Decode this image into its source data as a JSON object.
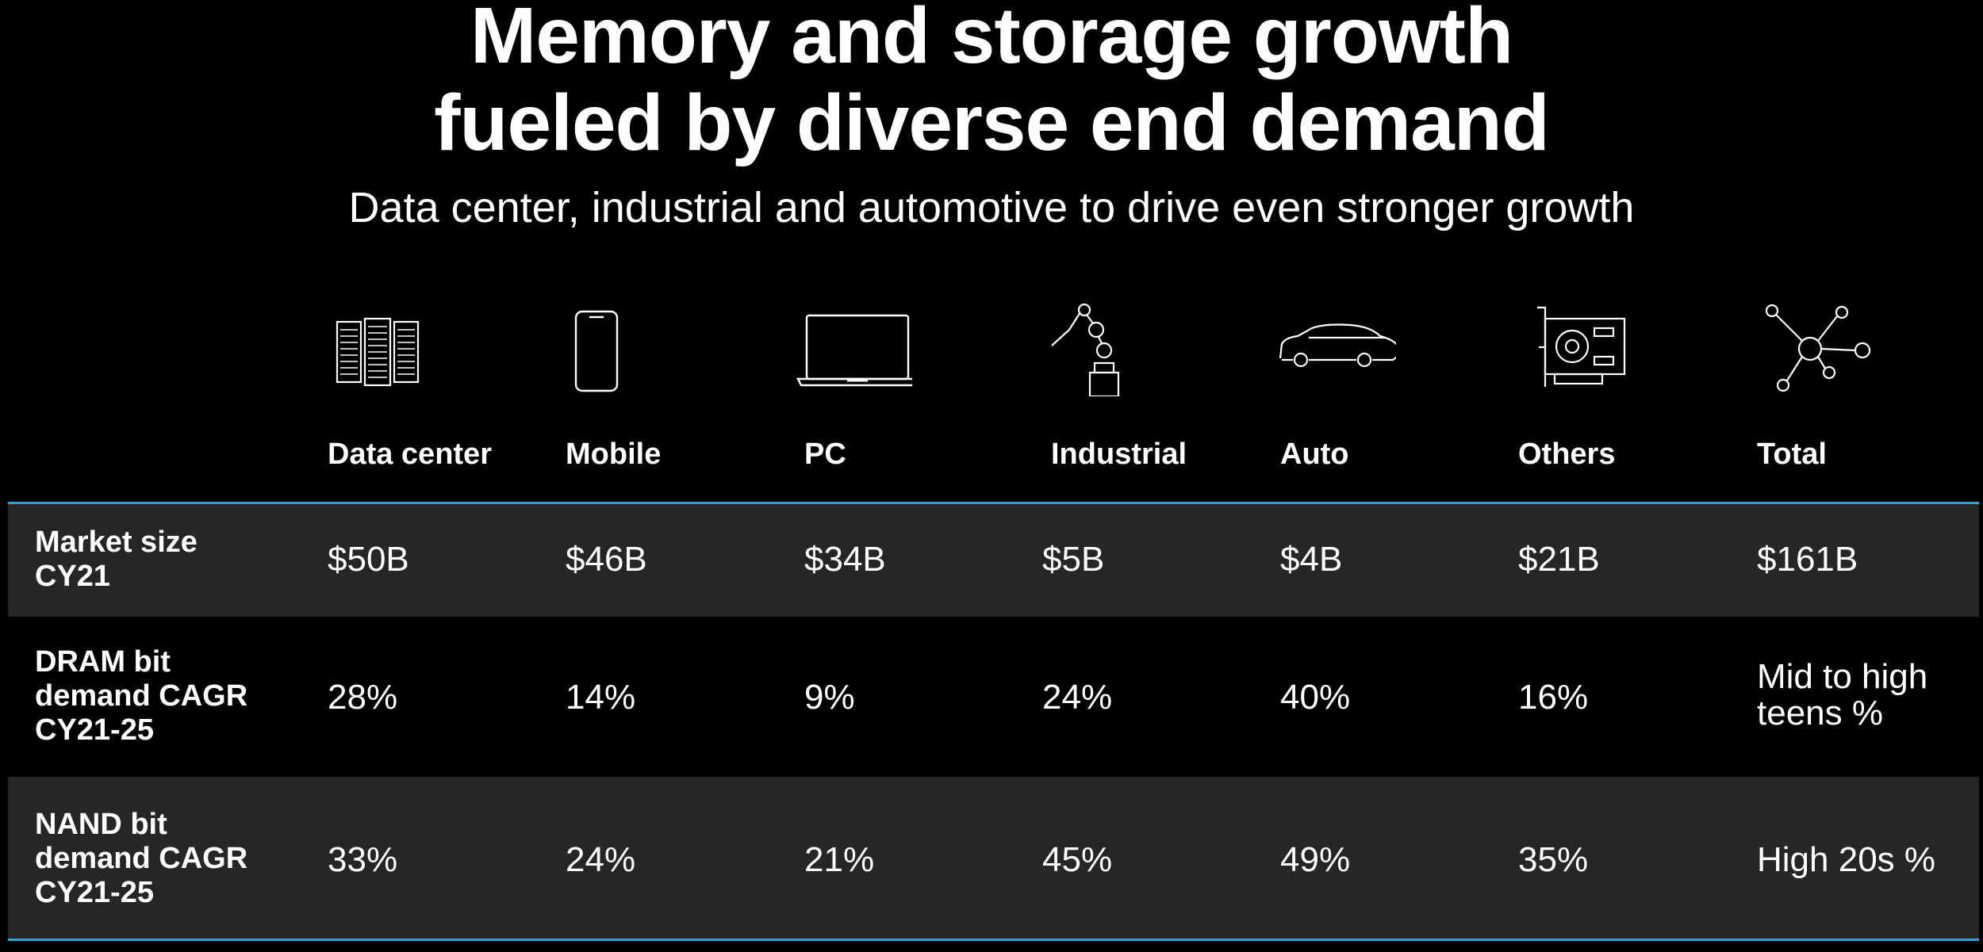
{
  "header": {
    "title_line1": "Memory and storage growth",
    "title_line2": "fueled by diverse end demand",
    "subtitle": "Data center, industrial and automotive to drive even stronger growth"
  },
  "categories": [
    {
      "label": "Data center",
      "icon": "server-rack-icon"
    },
    {
      "label": "Mobile",
      "icon": "smartphone-icon"
    },
    {
      "label": "PC",
      "icon": "laptop-icon"
    },
    {
      "label": "Industrial",
      "icon": "robot-arm-icon"
    },
    {
      "label": "Auto",
      "icon": "car-icon"
    },
    {
      "label": "Others",
      "icon": "graphics-card-icon"
    },
    {
      "label": "Total",
      "icon": "network-hub-icon"
    }
  ],
  "rows": [
    {
      "label_lines": [
        "Market size",
        "CY21"
      ],
      "values": [
        "$50B",
        "$46B",
        "$34B",
        "$5B",
        "$4B",
        "$21B",
        "$161B"
      ]
    },
    {
      "label_lines": [
        "DRAM bit",
        "demand CAGR",
        "CY21-25"
      ],
      "values": [
        "28%",
        "14%",
        "9%",
        "24%",
        "40%",
        "16%"
      ],
      "total_lines": [
        "Mid to high",
        "teens %"
      ]
    },
    {
      "label_lines": [
        "NAND bit",
        "demand CAGR",
        "CY21-25"
      ],
      "values": [
        "33%",
        "24%",
        "21%",
        "45%",
        "49%",
        "35%",
        "High 20s %"
      ]
    }
  ],
  "colors": {
    "background": "#000000",
    "row_shade": "#262626",
    "accent_rule": "#2aa6dd",
    "text": "#ffffff"
  }
}
